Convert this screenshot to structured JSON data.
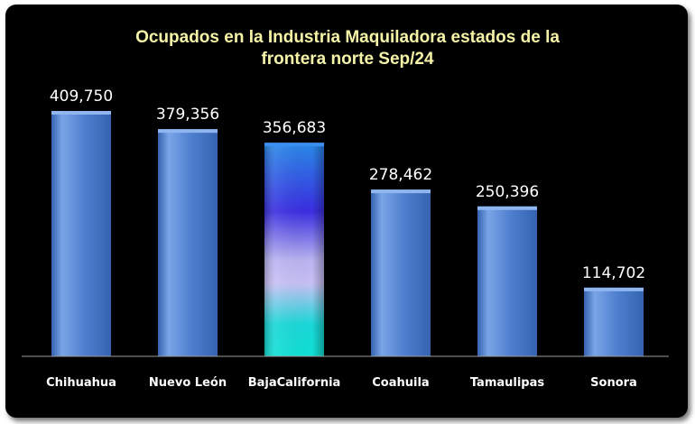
{
  "chart_data": {
    "type": "bar",
    "title_lines": [
      "Ocupados en la Industria Maquiladora estados de la",
      "frontera norte Sep/24"
    ],
    "categories": [
      "Chihuahua",
      "Nuevo León",
      "BajaCalifornia",
      "Coahuila",
      "Tamaulipas",
      "Sonora"
    ],
    "values": [
      409750,
      379356,
      356683,
      278462,
      250396,
      114702
    ],
    "value_labels": [
      "409,750",
      "379,356",
      "356,683",
      "278,462",
      "250,396",
      "114,702"
    ],
    "highlight_index": 2,
    "xlabel": "",
    "ylabel": "",
    "ylim": [
      0,
      409750
    ],
    "grid": false,
    "legend": "none",
    "colors": {
      "background": "#000000",
      "title": "#f7f4a8",
      "text": "#ffffff",
      "bar_light": "#7aa5e6",
      "bar_mid": "#4f7fcf",
      "bar_dark": "#3463b0",
      "highlight_stops": [
        "#2a8ae8",
        "#3a2ee0",
        "#b9b4f0",
        "#c8c0f4",
        "#1ad8d8",
        "#10e0d4"
      ],
      "axis": "#9a9a9a"
    }
  }
}
